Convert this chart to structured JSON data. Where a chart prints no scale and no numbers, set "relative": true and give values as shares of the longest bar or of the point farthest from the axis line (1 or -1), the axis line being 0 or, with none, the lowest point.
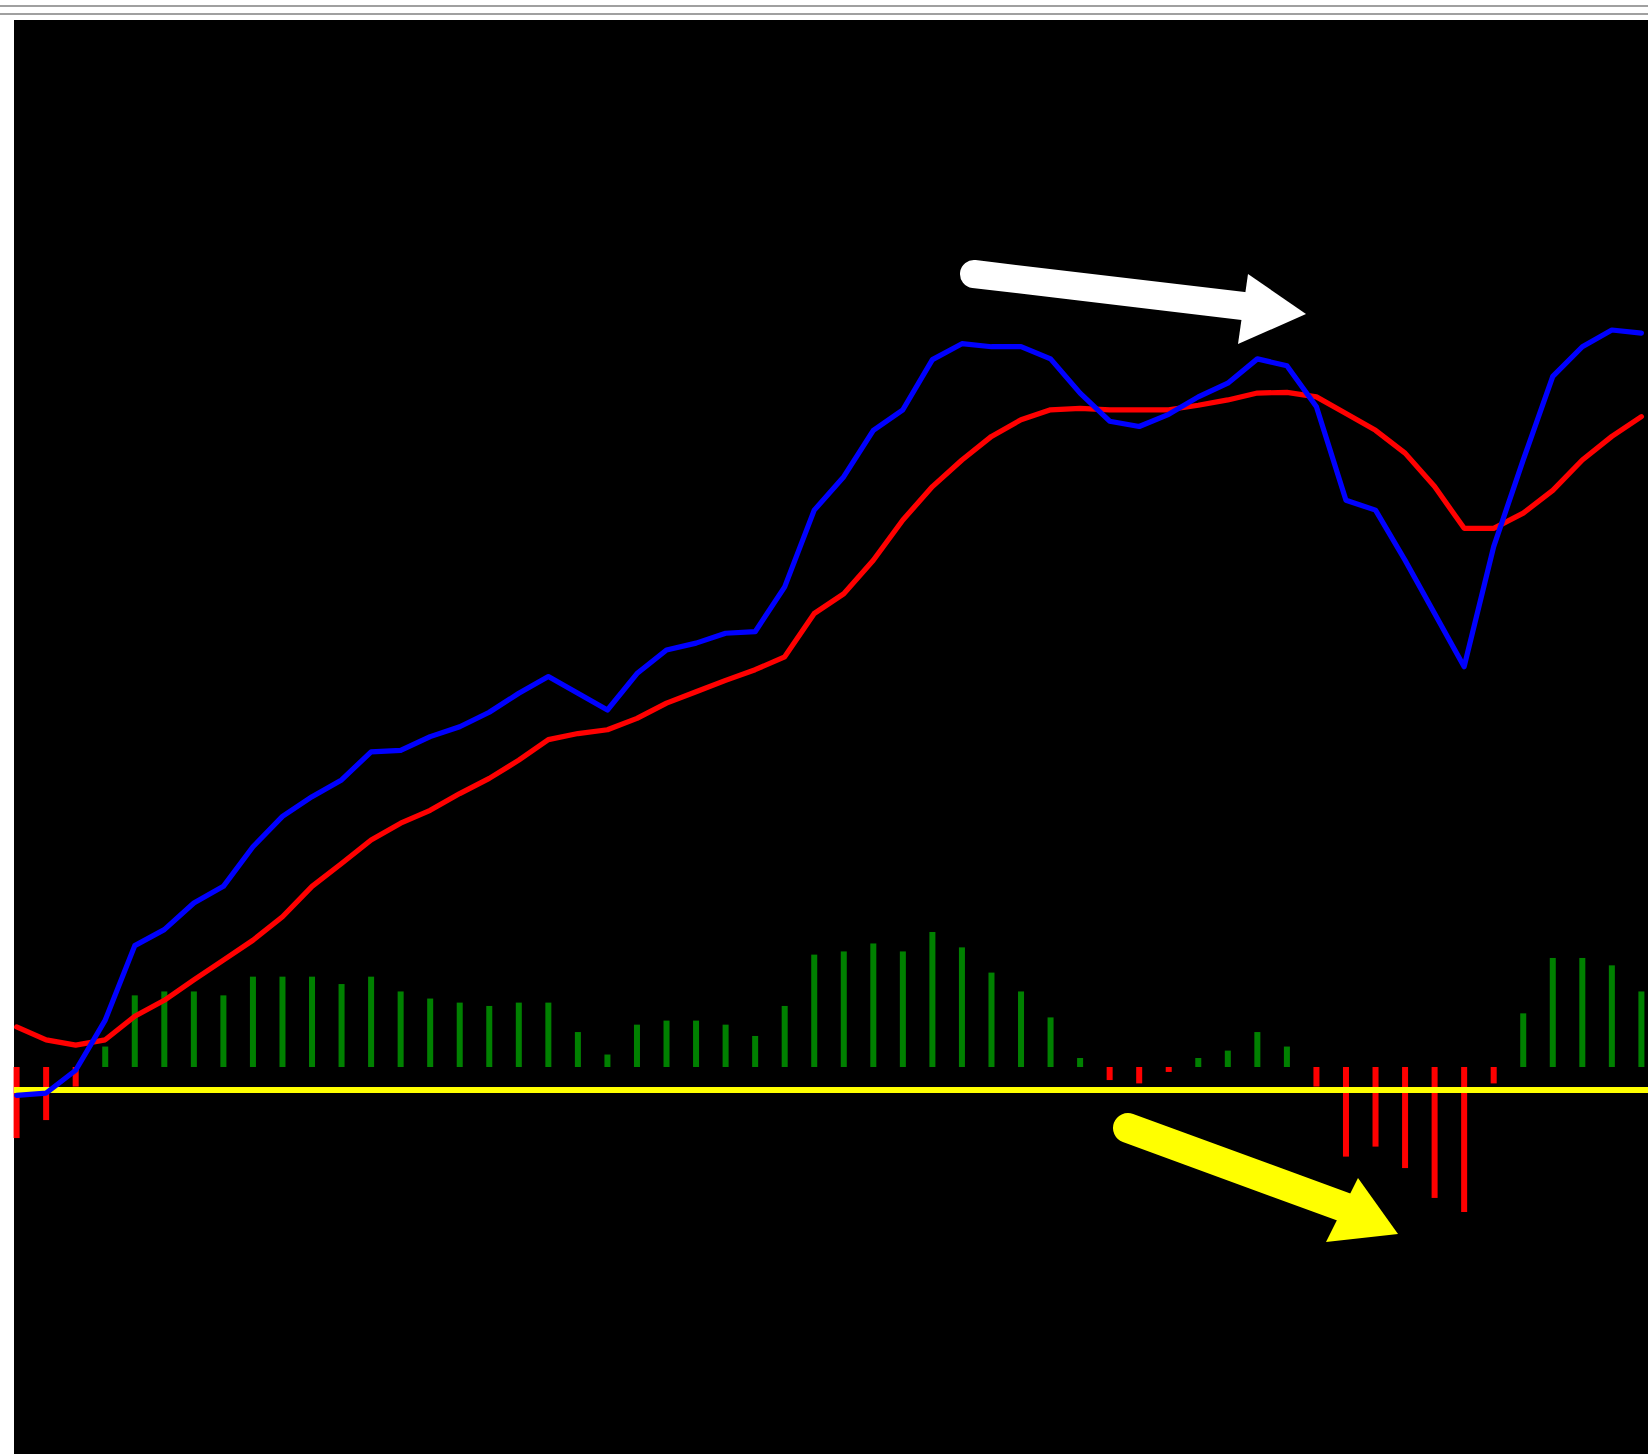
{
  "chart_data": [
    {
      "type": "line",
      "relative": true,
      "ref_lines": [
        {
          "axis": "y",
          "value": 0,
          "color": "#ffff00"
        }
      ],
      "categories": [
        null,
        null,
        null,
        null,
        null,
        null,
        null,
        null,
        null,
        null,
        null,
        null,
        null,
        null,
        null,
        null,
        null,
        null,
        null,
        null,
        null,
        null,
        null,
        null,
        null,
        null,
        null,
        null,
        null,
        null,
        null,
        null,
        null,
        null,
        null,
        null,
        null,
        null,
        null,
        null,
        null,
        null,
        null,
        null,
        null,
        null,
        null,
        null,
        null,
        null,
        null,
        null,
        null,
        null,
        null,
        null
      ],
      "series": [
        {
          "color": "#ff0000",
          "values": [
            0.083,
            0.066,
            0.059,
            0.066,
            0.097,
            0.118,
            0.145,
            0.171,
            0.197,
            0.228,
            0.268,
            0.298,
            0.329,
            0.351,
            0.368,
            0.39,
            0.41,
            0.434,
            0.461,
            0.469,
            0.474,
            0.489,
            0.509,
            0.524,
            0.539,
            0.553,
            0.57,
            0.627,
            0.653,
            0.697,
            0.75,
            0.794,
            0.829,
            0.86,
            0.882,
            0.895,
            0.897,
            0.895,
            0.895,
            0.895,
            0.901,
            0.908,
            0.917,
            0.918,
            0.912,
            0.89,
            0.868,
            0.838,
            0.794,
            0.739,
            0.739,
            0.759,
            0.789,
            0.829,
            0.86,
            0.886
          ]
        },
        {
          "color": "#0000ff",
          "values": [
            -0.007,
            -0.004,
            0.026,
            0.092,
            0.19,
            0.211,
            0.246,
            0.268,
            0.32,
            0.36,
            0.386,
            0.408,
            0.445,
            0.447,
            0.465,
            0.478,
            0.497,
            0.522,
            0.544,
            0.522,
            0.5,
            0.548,
            0.579,
            0.588,
            0.601,
            0.603,
            0.662,
            0.763,
            0.807,
            0.868,
            0.895,
            0.961,
            0.982,
            0.978,
            0.978,
            0.962,
            0.917,
            0.88,
            0.873,
            0.889,
            0.912,
            0.93,
            0.962,
            0.953,
            0.899,
            0.776,
            0.763,
            0.697,
            0.627,
            0.557,
            0.715,
            0.829,
            0.939,
            0.978,
            1,
            0.996
          ]
        }
      ]
    },
    {
      "type": "bar",
      "relative": true,
      "categories": [
        null,
        null,
        null,
        null,
        null,
        null,
        null,
        null,
        null,
        null,
        null,
        null,
        null,
        null,
        null,
        null,
        null,
        null,
        null,
        null,
        null,
        null,
        null,
        null,
        null,
        null,
        null,
        null,
        null,
        null,
        null,
        null,
        null,
        null,
        null,
        null,
        null,
        null,
        null,
        null,
        null,
        null,
        null,
        null,
        null,
        null,
        null,
        null,
        null,
        null,
        null,
        null,
        null,
        null,
        null,
        null
      ],
      "values": [
        -0.49,
        -0.366,
        -0.135,
        0.141,
        0.494,
        0.521,
        0.521,
        0.494,
        0.623,
        0.623,
        0.623,
        0.572,
        0.623,
        0.521,
        0.472,
        0.444,
        0.421,
        0.444,
        0.444,
        0.241,
        0.086,
        0.292,
        0.32,
        0.32,
        0.292,
        0.214,
        0.421,
        0.775,
        0.797,
        0.852,
        0.797,
        0.931,
        0.825,
        0.651,
        0.521,
        0.342,
        0.062,
        -0.09,
        -0.113,
        -0.034,
        0.062,
        0.113,
        0.241,
        0.141,
        -0.135,
        -0.618,
        -0.549,
        -0.697,
        -0.903,
        -1,
        -0.113,
        0.37,
        0.752,
        0.752,
        0.701,
        0.521
      ],
      "colors": [
        "#ff0000",
        "#ff0000",
        "#ff0000",
        "#008000",
        "#008000",
        "#008000",
        "#008000",
        "#008000",
        "#008000",
        "#008000",
        "#008000",
        "#008000",
        "#008000",
        "#008000",
        "#008000",
        "#008000",
        "#008000",
        "#008000",
        "#008000",
        "#008000",
        "#008000",
        "#008000",
        "#008000",
        "#008000",
        "#008000",
        "#008000",
        "#008000",
        "#008000",
        "#008000",
        "#008000",
        "#008000",
        "#008000",
        "#008000",
        "#008000",
        "#008000",
        "#008000",
        "#008000",
        "#ff0000",
        "#ff0000",
        "#ff0000",
        "#008000",
        "#008000",
        "#008000",
        "#008000",
        "#ff0000",
        "#ff0000",
        "#ff0000",
        "#ff0000",
        "#ff0000",
        "#ff0000",
        "#ff0000",
        "#008000",
        "#008000",
        "#008000",
        "#008000",
        "#008000"
      ]
    }
  ]
}
